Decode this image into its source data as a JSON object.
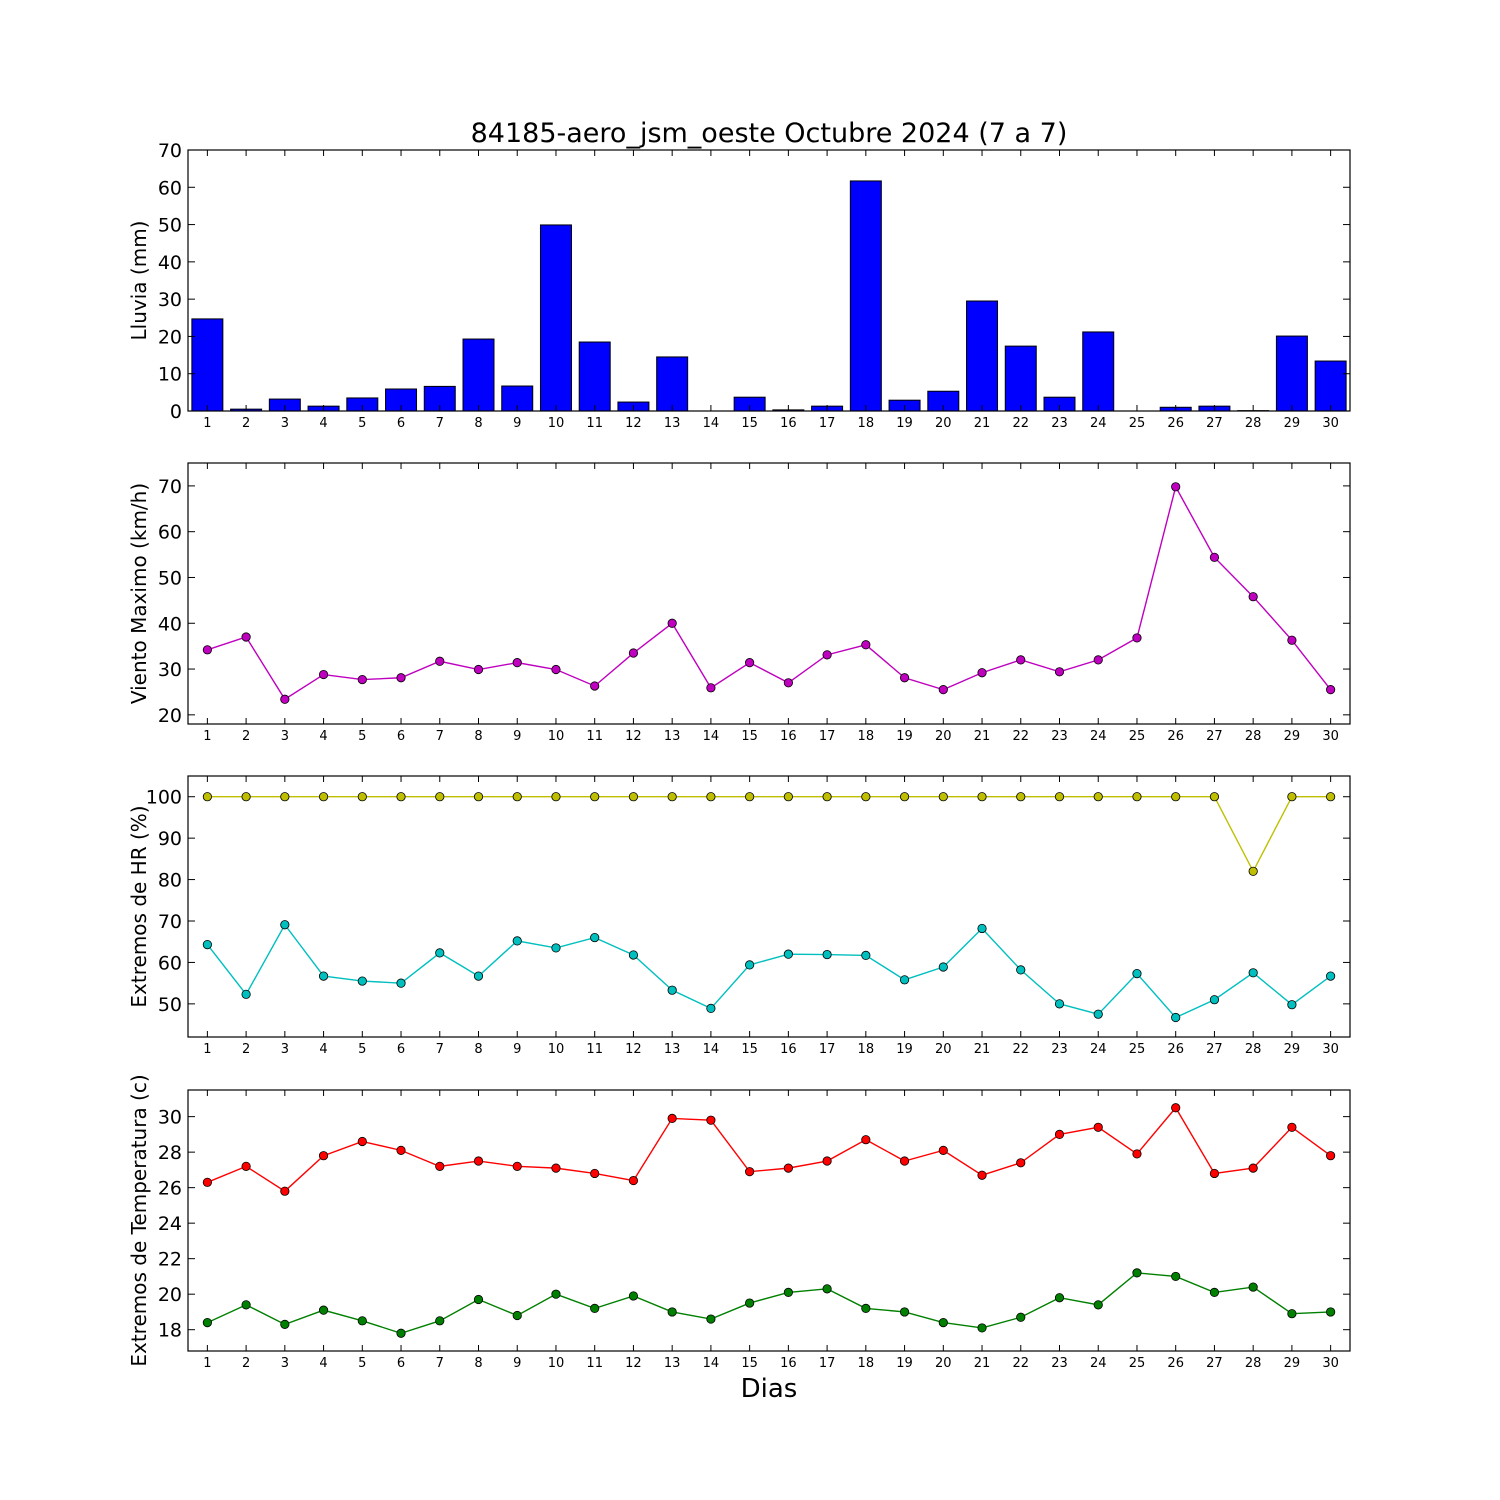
{
  "chart_data": {
    "title": "84185-aero_jsm_oeste Octubre 2024  (7 a 7)",
    "xlabel": "Dias",
    "days": [
      1,
      2,
      3,
      4,
      5,
      6,
      7,
      8,
      9,
      10,
      11,
      12,
      13,
      14,
      15,
      16,
      17,
      18,
      19,
      20,
      21,
      22,
      23,
      24,
      25,
      26,
      27,
      28,
      29,
      30
    ],
    "panels": [
      {
        "type": "bar",
        "ylabel": "Lluvia (mm)",
        "ylim": [
          0,
          70
        ],
        "yticks": [
          0,
          10,
          20,
          30,
          40,
          50,
          60,
          70
        ],
        "series": [
          {
            "color": "#0000ff",
            "values": [
              24.7,
              0.5,
              3.2,
              1.3,
              3.5,
              5.9,
              6.6,
              19.3,
              6.7,
              49.9,
              18.5,
              2.4,
              14.5,
              0,
              3.7,
              0.3,
              1.3,
              61.7,
              2.9,
              5.3,
              29.5,
              17.4,
              3.7,
              21.2,
              0,
              1.0,
              1.3,
              0.1,
              20.1,
              13.4
            ]
          }
        ]
      },
      {
        "type": "line",
        "ylabel": "Viento Maximo (km/h)",
        "ylim": [
          18,
          75
        ],
        "yticks": [
          20,
          30,
          40,
          50,
          60,
          70
        ],
        "series": [
          {
            "color": "#bf00bf",
            "values": [
              34.2,
              37.0,
              23.4,
              28.8,
              27.7,
              28.1,
              31.7,
              29.9,
              31.4,
              29.9,
              26.3,
              33.5,
              40.0,
              25.9,
              31.4,
              27.0,
              33.1,
              35.3,
              28.1,
              25.5,
              29.2,
              32.0,
              29.4,
              32.0,
              36.8,
              69.8,
              54.4,
              45.8,
              36.3,
              25.5
            ]
          }
        ]
      },
      {
        "type": "line",
        "ylabel": "Extremos de HR (%)",
        "ylim": [
          42,
          105
        ],
        "yticks": [
          50,
          60,
          70,
          80,
          90,
          100
        ],
        "series": [
          {
            "color": "#bfbf00",
            "values": [
              100,
              100,
              100,
              100,
              100,
              100,
              100,
              100,
              100,
              100,
              100,
              100,
              100,
              100,
              100,
              100,
              100,
              100,
              100,
              100,
              100,
              100,
              100,
              100,
              100,
              100,
              100,
              82,
              100,
              100
            ]
          },
          {
            "color": "#00bfbf",
            "values": [
              64.3,
              52.3,
              69.1,
              56.7,
              55.5,
              55.0,
              62.3,
              56.7,
              65.2,
              63.5,
              66.0,
              61.8,
              53.3,
              48.9,
              59.4,
              62.0,
              61.9,
              61.7,
              55.8,
              58.9,
              68.2,
              58.2,
              50.0,
              47.5,
              57.3,
              46.7,
              51.0,
              57.5,
              49.8,
              56.7
            ]
          }
        ]
      },
      {
        "type": "line",
        "ylabel": "Extremos de Temperatura (c)",
        "ylim": [
          16.8,
          31.5
        ],
        "yticks": [
          18,
          20,
          22,
          24,
          26,
          28,
          30
        ],
        "series": [
          {
            "color": "#ff0000",
            "values": [
              26.3,
              27.2,
              25.8,
              27.8,
              28.6,
              28.1,
              27.2,
              27.5,
              27.2,
              27.1,
              26.8,
              26.4,
              29.9,
              29.8,
              26.9,
              27.1,
              27.5,
              28.7,
              27.5,
              28.1,
              26.7,
              27.4,
              29.0,
              29.4,
              27.9,
              30.5,
              26.8,
              27.1,
              29.4,
              27.8
            ]
          },
          {
            "color": "#008000",
            "values": [
              18.4,
              19.4,
              18.3,
              19.1,
              18.5,
              17.8,
              18.5,
              19.7,
              18.8,
              20.0,
              19.2,
              19.9,
              19.0,
              18.6,
              19.5,
              20.1,
              20.3,
              19.2,
              19.0,
              18.4,
              18.1,
              18.7,
              19.8,
              19.4,
              21.2,
              21.0,
              20.1,
              20.4,
              18.9,
              19.0
            ]
          }
        ]
      }
    ]
  }
}
